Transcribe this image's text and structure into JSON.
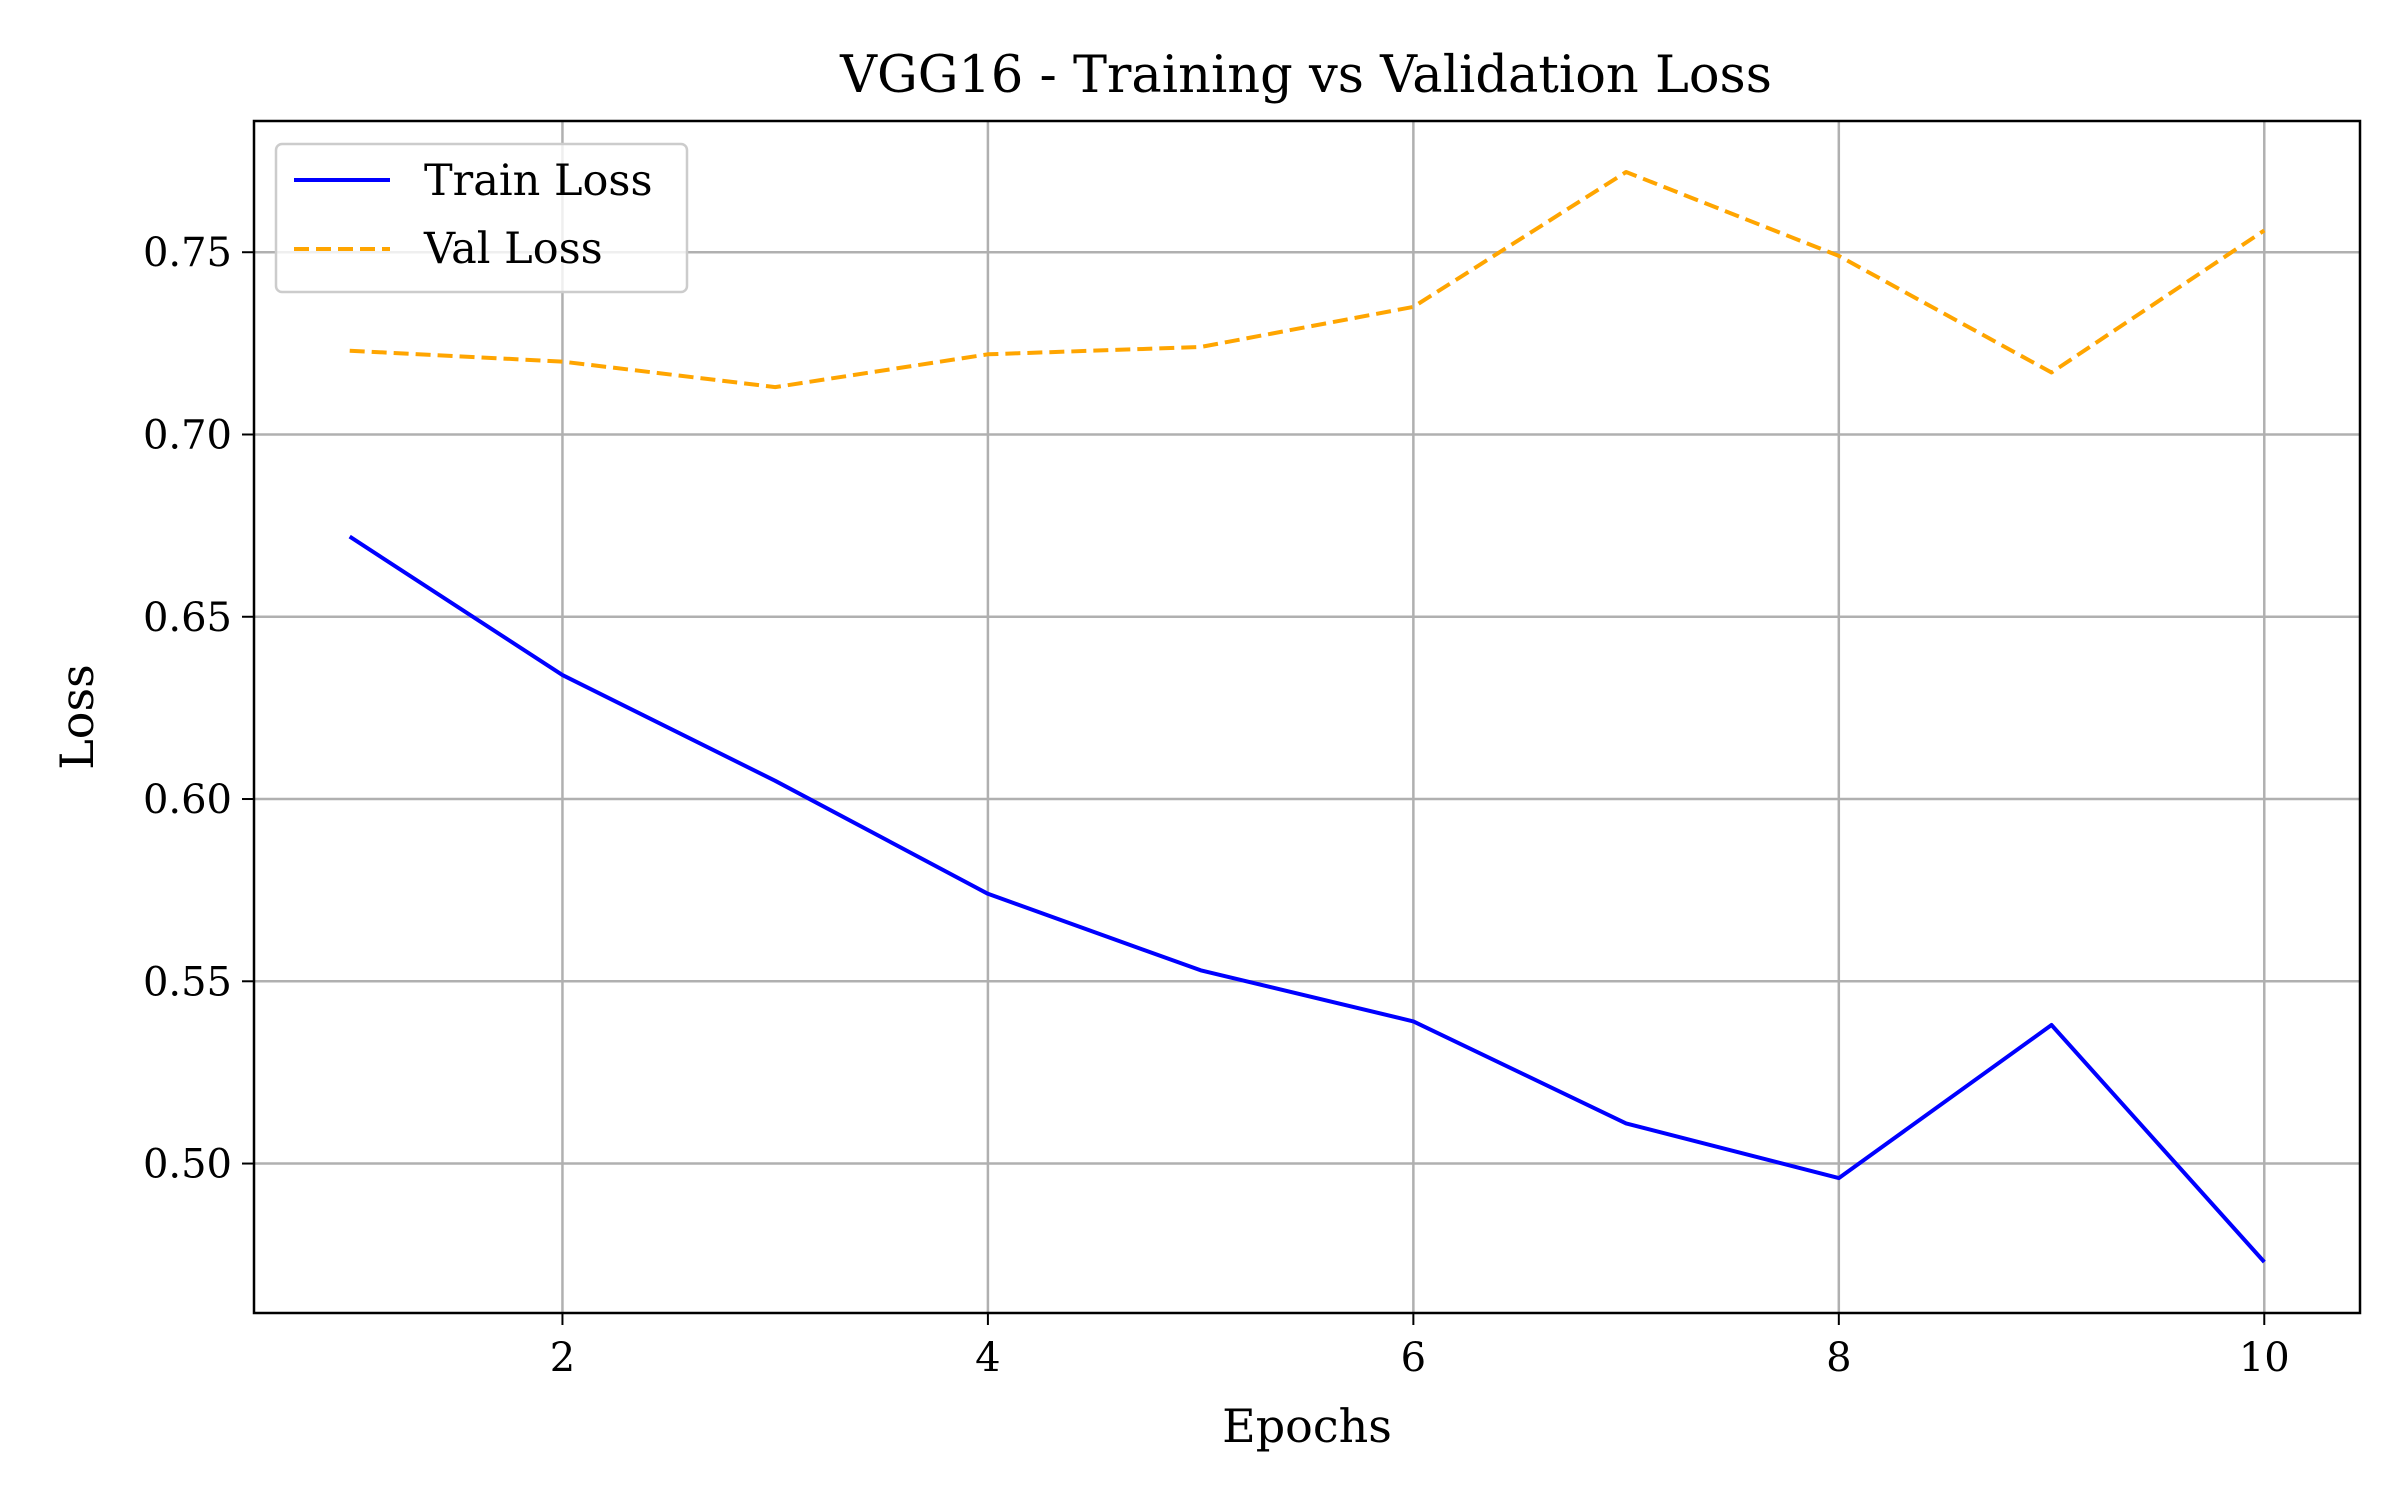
{
  "chart_data": {
    "type": "line",
    "title": "VGG16 - Training vs Validation Loss",
    "xlabel": "Epochs",
    "ylabel": "Loss",
    "x": [
      1,
      2,
      3,
      4,
      5,
      6,
      7,
      8,
      9,
      10
    ],
    "xticks": [
      "2",
      "4",
      "6",
      "8",
      "10"
    ],
    "yticks": [
      "0.50",
      "0.55",
      "0.60",
      "0.65",
      "0.70",
      "0.75"
    ],
    "xlim": [
      0.55,
      10.45
    ],
    "ylim": [
      0.459,
      0.786
    ],
    "grid": true,
    "legend_position": "top-left",
    "series": [
      {
        "name": "Train Loss",
        "color": "#0000ff",
        "style": "solid",
        "values": [
          0.672,
          0.634,
          0.605,
          0.574,
          0.553,
          0.539,
          0.511,
          0.496,
          0.538,
          0.473
        ]
      },
      {
        "name": "Val Loss",
        "color": "#ffa500",
        "style": "dashed",
        "values": [
          0.723,
          0.72,
          0.713,
          0.722,
          0.724,
          0.735,
          0.772,
          0.749,
          0.717,
          0.756
        ]
      }
    ]
  }
}
